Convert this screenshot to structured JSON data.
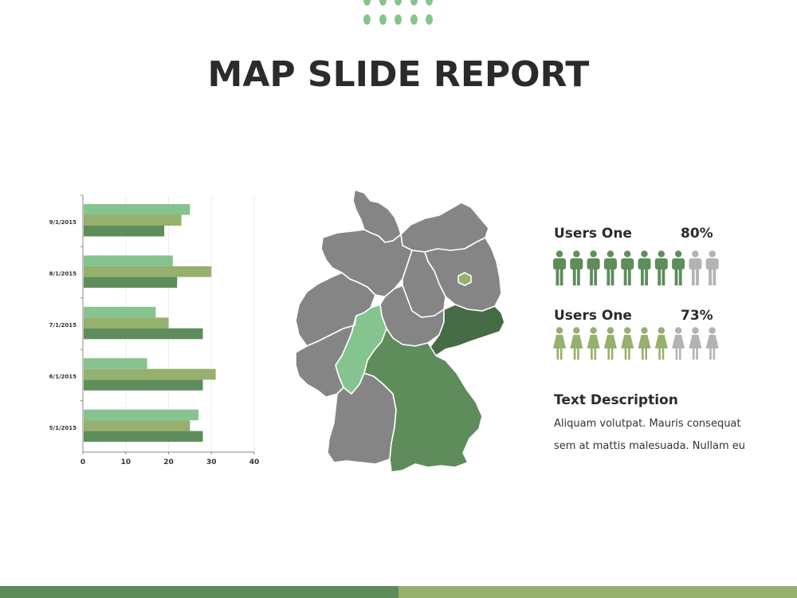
{
  "slide": {
    "title": "MAP SLIDE REPORT"
  },
  "colors": {
    "light_green": "#86c48f",
    "olive_green": "#96b06e",
    "dark_green": "#5e8d5b",
    "forest_green": "#476b45",
    "gray": "#858585",
    "light_gray": "#b3b3b3"
  },
  "chart_data": {
    "type": "bar",
    "orientation": "horizontal",
    "categories": [
      "5/1/2015",
      "6/1/2015",
      "7/1/2015",
      "8/1/2015",
      "9/1/2015"
    ],
    "series": [
      {
        "values": [
          28,
          28,
          28,
          22,
          19
        ],
        "color": "#5e8d5b"
      },
      {
        "values": [
          25,
          31,
          20,
          30,
          23
        ],
        "color": "#96b06e"
      },
      {
        "values": [
          27,
          15,
          17,
          21,
          25
        ],
        "color": "#86c48f"
      }
    ],
    "xlim": [
      0,
      40
    ],
    "xticks": [
      "0",
      "10",
      "20",
      "30",
      "40"
    ],
    "grid": true
  },
  "map": {
    "highlighted_regions": [
      "Bavaria",
      "Hesse",
      "Saxony",
      "Berlin"
    ]
  },
  "stats": [
    {
      "label": "Users One",
      "value": "80%",
      "percent": 80,
      "icon": "male-person-icon",
      "total_icons": 10
    },
    {
      "label": "Users One",
      "value": "73%",
      "percent": 73,
      "icon": "female-person-icon",
      "total_icons": 10
    }
  ],
  "description": {
    "title": "Text Description",
    "text": "Aliquam volutpat. Mauris consequat sem at mattis malesuada. Nullam eu"
  }
}
